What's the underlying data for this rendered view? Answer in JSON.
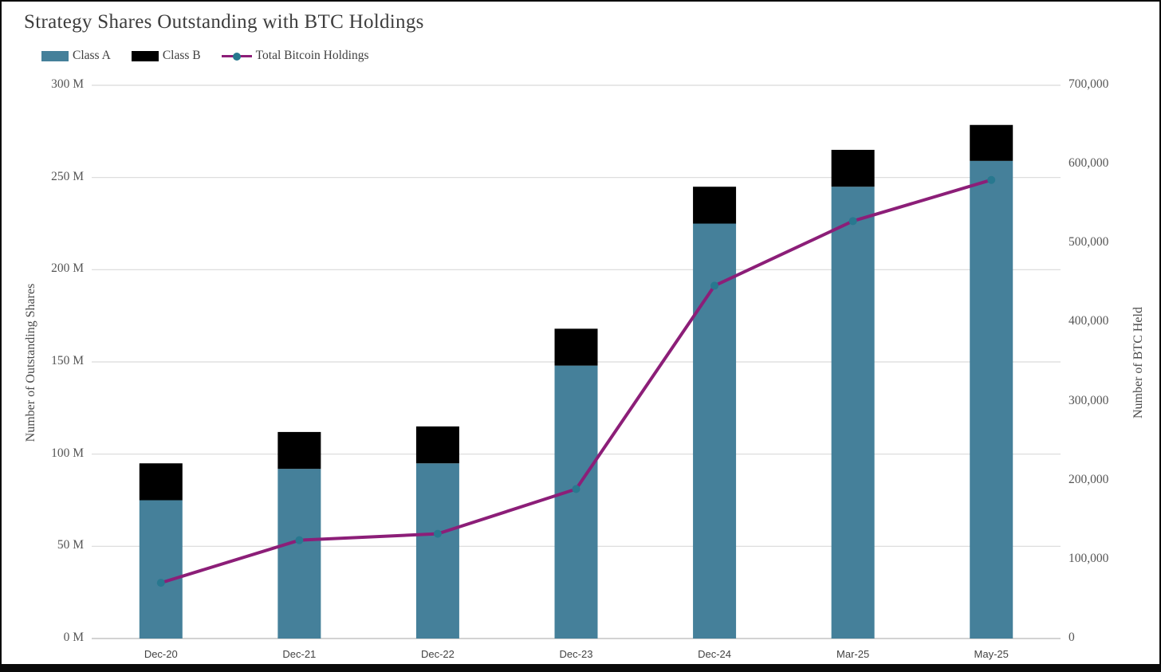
{
  "window": {
    "background": "#ffffff",
    "frame_color": "#0a0a0a"
  },
  "chart_data": {
    "type": "combo-stacked-bar-line",
    "title": "Strategy Shares Outstanding with BTC Holdings",
    "categories": [
      "Dec-20",
      "Dec-21",
      "Dec-22",
      "Dec-23",
      "Dec-24",
      "Mar-25",
      "May-25"
    ],
    "bar_unit": "millions of shares",
    "stacked": true,
    "grid": true,
    "legend_position": "top-left",
    "bar_series": [
      {
        "name": "Class A",
        "color": "#45809A",
        "values": [
          75,
          92,
          95,
          148,
          225,
          245,
          259
        ]
      },
      {
        "name": "Class B",
        "color": "#000000",
        "values": [
          20,
          20,
          20,
          20,
          20,
          20,
          19.5
        ]
      }
    ],
    "line_series": {
      "name": "Total Bitcoin Holdings",
      "color": "#8C1E78",
      "marker_color": "#28788F",
      "values": [
        70470,
        124391,
        132500,
        189150,
        446400,
        528185,
        580250
      ]
    },
    "left_axis": {
      "label": "Number of Outstanding Shares",
      "min": 0,
      "max": 300,
      "ticks": [
        "0 M",
        "50 M",
        "100 M",
        "150 M",
        "200 M",
        "250 M",
        "300 M"
      ]
    },
    "right_axis": {
      "label": "Number of BTC Held",
      "min": 0,
      "max": 700000,
      "ticks": [
        "0",
        "100,000",
        "200,000",
        "300,000",
        "400,000",
        "500,000",
        "600,000",
        "700,000"
      ]
    },
    "colors": {
      "gridline": "#d9d9d9",
      "axis_line": "#c4c4c4",
      "title_text": "#3d3d3d",
      "tick_text": "#555555"
    }
  }
}
